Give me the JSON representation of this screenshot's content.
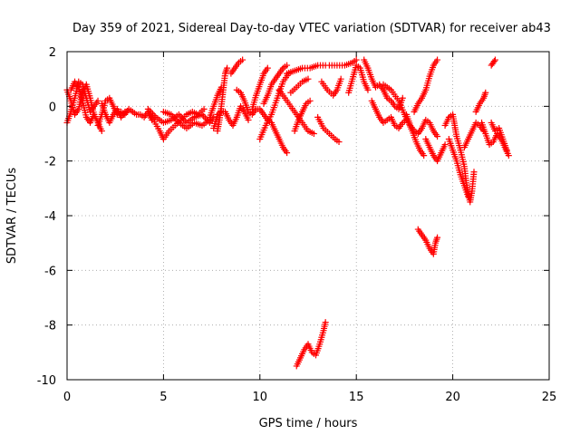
{
  "chart_data": {
    "type": "scatter",
    "title": "Day 359 of 2021, Sidereal Day-to-day VTEC variation (SDTVAR) for receiver ab43",
    "xlabel": "GPS time / hours",
    "ylabel": "SDTVAR / TECUs",
    "xlim": [
      0,
      25
    ],
    "ylim": [
      -10,
      2
    ],
    "xticks": [
      0,
      5,
      10,
      15,
      20,
      25
    ],
    "yticks": [
      -10,
      -8,
      -6,
      -4,
      -2,
      0,
      2
    ],
    "xtick_labels": [
      "0",
      "5",
      "10",
      "15",
      "20",
      "25"
    ],
    "ytick_labels": [
      "-10",
      "-8",
      "-6",
      "-4",
      "-2",
      "0",
      "2"
    ],
    "grid": true,
    "marker": "+",
    "series_color": "#ff0000",
    "tracks": [
      [
        [
          0.0,
          0.6
        ],
        [
          0.2,
          0.2
        ],
        [
          0.4,
          -0.3
        ],
        [
          0.6,
          -0.1
        ],
        [
          0.8,
          0.5
        ],
        [
          1.0,
          0.8
        ],
        [
          1.2,
          0.3
        ],
        [
          1.4,
          -0.3
        ],
        [
          1.6,
          -0.6
        ],
        [
          1.8,
          -0.9
        ]
      ],
      [
        [
          0.0,
          -0.6
        ],
        [
          0.2,
          -0.2
        ],
        [
          0.4,
          0.3
        ],
        [
          0.6,
          0.9
        ],
        [
          0.8,
          0.8
        ],
        [
          1.0,
          0.3
        ],
        [
          1.2,
          -0.2
        ],
        [
          1.4,
          0.0
        ],
        [
          1.6,
          0.2
        ]
      ],
      [
        [
          0.2,
          0.6
        ],
        [
          0.4,
          0.9
        ],
        [
          0.6,
          0.7
        ],
        [
          0.8,
          0.2
        ],
        [
          1.0,
          -0.4
        ],
        [
          1.2,
          -0.6
        ],
        [
          1.4,
          -0.3
        ]
      ],
      [
        [
          1.6,
          -0.7
        ],
        [
          1.8,
          -0.3
        ],
        [
          2.0,
          0.2
        ],
        [
          2.2,
          0.3
        ],
        [
          2.4,
          0.0
        ],
        [
          2.6,
          -0.3
        ],
        [
          2.8,
          -0.2
        ],
        [
          3.0,
          -0.3
        ],
        [
          3.2,
          -0.1
        ],
        [
          3.4,
          -0.2
        ],
        [
          3.6,
          -0.3
        ],
        [
          3.8,
          -0.3
        ],
        [
          4.0,
          -0.4
        ],
        [
          4.2,
          -0.2
        ],
        [
          4.4,
          -0.5
        ]
      ],
      [
        [
          1.8,
          0.1
        ],
        [
          2.0,
          -0.3
        ],
        [
          2.2,
          -0.6
        ],
        [
          2.4,
          -0.3
        ],
        [
          2.6,
          -0.1
        ],
        [
          2.8,
          -0.4
        ],
        [
          3.0,
          -0.2
        ]
      ],
      [
        [
          4.2,
          -0.1
        ],
        [
          4.6,
          -0.4
        ],
        [
          5.0,
          -0.6
        ],
        [
          5.4,
          -0.5
        ],
        [
          5.8,
          -0.3
        ],
        [
          6.2,
          -0.6
        ],
        [
          6.6,
          -0.4
        ],
        [
          7.0,
          -0.3
        ],
        [
          7.4,
          -0.6
        ],
        [
          7.6,
          -0.4
        ]
      ],
      [
        [
          4.4,
          -0.4
        ],
        [
          4.8,
          -0.9
        ],
        [
          5.0,
          -1.2
        ],
        [
          5.3,
          -0.9
        ],
        [
          5.6,
          -0.7
        ],
        [
          5.9,
          -0.5
        ],
        [
          6.2,
          -0.3
        ],
        [
          6.5,
          -0.2
        ],
        [
          6.8,
          -0.3
        ],
        [
          7.1,
          -0.1
        ]
      ],
      [
        [
          5.0,
          -0.2
        ],
        [
          5.4,
          -0.3
        ],
        [
          5.8,
          -0.6
        ],
        [
          6.2,
          -0.8
        ],
        [
          6.6,
          -0.6
        ],
        [
          7.0,
          -0.7
        ],
        [
          7.4,
          -0.5
        ]
      ],
      [
        [
          7.4,
          -0.4
        ],
        [
          7.6,
          0.0
        ],
        [
          7.8,
          0.4
        ],
        [
          8.0,
          0.7
        ]
      ],
      [
        [
          7.6,
          -0.8
        ],
        [
          7.8,
          -0.3
        ],
        [
          8.0,
          -0.2
        ],
        [
          8.2,
          -0.2
        ],
        [
          8.4,
          -0.5
        ],
        [
          8.6,
          -0.7
        ],
        [
          8.8,
          -0.4
        ],
        [
          9.0,
          0.0
        ],
        [
          9.2,
          -0.2
        ],
        [
          9.4,
          -0.5
        ]
      ],
      [
        [
          7.8,
          -0.9
        ],
        [
          7.9,
          -0.5
        ],
        [
          8.0,
          0.0
        ],
        [
          8.1,
          0.6
        ],
        [
          8.2,
          1.2
        ],
        [
          8.3,
          1.4
        ]
      ],
      [
        [
          8.5,
          1.2
        ],
        [
          8.7,
          1.4
        ],
        [
          8.9,
          1.6
        ],
        [
          9.1,
          1.7
        ]
      ],
      [
        [
          8.8,
          0.6
        ],
        [
          9.0,
          0.5
        ],
        [
          9.2,
          0.2
        ],
        [
          9.4,
          -0.2
        ],
        [
          9.6,
          -0.3
        ],
        [
          9.8,
          -0.1
        ],
        [
          10.0,
          -0.1
        ],
        [
          10.2,
          -0.3
        ],
        [
          10.4,
          -0.5
        ],
        [
          10.6,
          -0.6
        ]
      ],
      [
        [
          9.6,
          -0.1
        ],
        [
          9.8,
          0.4
        ],
        [
          10.0,
          0.8
        ],
        [
          10.2,
          1.2
        ],
        [
          10.4,
          1.4
        ]
      ],
      [
        [
          10.2,
          0.1
        ],
        [
          10.4,
          0.4
        ],
        [
          10.6,
          0.8
        ],
        [
          10.8,
          1.0
        ],
        [
          11.0,
          1.2
        ],
        [
          11.2,
          1.4
        ],
        [
          11.4,
          1.5
        ]
      ],
      [
        [
          10.0,
          -1.2
        ],
        [
          10.3,
          -0.7
        ],
        [
          10.6,
          -0.3
        ],
        [
          10.9,
          0.3
        ],
        [
          11.2,
          0.9
        ],
        [
          11.5,
          1.2
        ]
      ],
      [
        [
          10.6,
          -0.6
        ],
        [
          10.8,
          -0.9
        ],
        [
          11.0,
          -1.2
        ],
        [
          11.2,
          -1.5
        ],
        [
          11.4,
          -1.7
        ]
      ],
      [
        [
          11.4,
          1.2
        ],
        [
          11.8,
          1.3
        ],
        [
          12.2,
          1.4
        ],
        [
          12.6,
          1.4
        ],
        [
          13.0,
          1.5
        ],
        [
          13.4,
          1.5
        ]
      ],
      [
        [
          11.6,
          0.5
        ],
        [
          11.9,
          0.7
        ],
        [
          12.2,
          0.9
        ],
        [
          12.5,
          1.0
        ]
      ],
      [
        [
          11.0,
          0.6
        ],
        [
          11.3,
          0.3
        ],
        [
          11.6,
          0.0
        ],
        [
          11.9,
          -0.3
        ],
        [
          12.2,
          -0.6
        ],
        [
          12.5,
          -0.9
        ],
        [
          12.8,
          -1.0
        ]
      ],
      [
        [
          11.8,
          -0.9
        ],
        [
          12.0,
          -0.5
        ],
        [
          12.2,
          -0.2
        ],
        [
          12.4,
          0.1
        ],
        [
          12.6,
          0.2
        ]
      ],
      [
        [
          11.9,
          -9.5
        ],
        [
          12.1,
          -9.2
        ],
        [
          12.3,
          -8.9
        ],
        [
          12.5,
          -8.7
        ],
        [
          12.7,
          -9.0
        ],
        [
          12.9,
          -9.1
        ],
        [
          13.1,
          -8.7
        ],
        [
          13.3,
          -8.2
        ],
        [
          13.4,
          -7.9
        ]
      ],
      [
        [
          13.0,
          -0.4
        ],
        [
          13.3,
          -0.8
        ],
        [
          13.6,
          -1.0
        ],
        [
          13.9,
          -1.2
        ],
        [
          14.1,
          -1.3
        ]
      ],
      [
        [
          13.2,
          0.9
        ],
        [
          13.5,
          0.6
        ],
        [
          13.8,
          0.4
        ],
        [
          14.0,
          0.6
        ],
        [
          14.2,
          1.0
        ]
      ],
      [
        [
          13.6,
          1.5
        ],
        [
          14.0,
          1.5
        ],
        [
          14.4,
          1.5
        ],
        [
          14.8,
          1.6
        ],
        [
          15.0,
          1.7
        ]
      ],
      [
        [
          14.6,
          0.5
        ],
        [
          14.8,
          1.0
        ],
        [
          15.0,
          1.5
        ],
        [
          15.2,
          1.4
        ],
        [
          15.4,
          0.9
        ],
        [
          15.6,
          0.6
        ]
      ],
      [
        [
          15.4,
          1.7
        ],
        [
          15.6,
          1.4
        ],
        [
          15.8,
          1.0
        ],
        [
          16.0,
          0.7
        ],
        [
          16.2,
          0.8
        ],
        [
          16.4,
          0.6
        ],
        [
          16.6,
          0.3
        ],
        [
          16.8,
          0.2
        ],
        [
          17.0,
          0.0
        ],
        [
          17.2,
          -0.1
        ],
        [
          17.4,
          0.3
        ]
      ],
      [
        [
          15.8,
          0.2
        ],
        [
          16.0,
          -0.1
        ],
        [
          16.2,
          -0.4
        ],
        [
          16.4,
          -0.6
        ],
        [
          16.6,
          -0.5
        ],
        [
          16.8,
          -0.4
        ],
        [
          17.0,
          -0.7
        ],
        [
          17.2,
          -0.8
        ],
        [
          17.4,
          -0.6
        ],
        [
          17.6,
          -0.5
        ]
      ],
      [
        [
          16.4,
          0.8
        ],
        [
          16.8,
          0.6
        ],
        [
          17.2,
          0.2
        ],
        [
          17.5,
          -0.3
        ],
        [
          17.7,
          -0.6
        ],
        [
          17.9,
          -0.9
        ],
        [
          18.1,
          -1.3
        ],
        [
          18.3,
          -1.6
        ],
        [
          18.5,
          -1.8
        ]
      ],
      [
        [
          17.6,
          -0.3
        ],
        [
          17.8,
          -0.7
        ],
        [
          18.0,
          -0.9
        ],
        [
          18.2,
          -1.0
        ],
        [
          18.4,
          -0.8
        ],
        [
          18.6,
          -0.5
        ],
        [
          18.8,
          -0.6
        ],
        [
          19.0,
          -0.9
        ],
        [
          19.2,
          -1.1
        ]
      ],
      [
        [
          18.0,
          -0.2
        ],
        [
          18.2,
          0.1
        ],
        [
          18.4,
          0.3
        ],
        [
          18.6,
          0.6
        ],
        [
          18.8,
          1.1
        ],
        [
          19.0,
          1.5
        ],
        [
          19.2,
          1.7
        ]
      ],
      [
        [
          18.6,
          -1.2
        ],
        [
          18.8,
          -1.5
        ],
        [
          19.0,
          -1.8
        ],
        [
          19.2,
          -2.0
        ],
        [
          19.4,
          -1.7
        ],
        [
          19.6,
          -1.4
        ]
      ],
      [
        [
          18.2,
          -4.5
        ],
        [
          18.4,
          -4.7
        ],
        [
          18.6,
          -4.9
        ],
        [
          18.8,
          -5.2
        ],
        [
          19.0,
          -5.4
        ],
        [
          19.1,
          -5.0
        ],
        [
          19.2,
          -4.8
        ]
      ],
      [
        [
          19.6,
          -0.7
        ],
        [
          19.8,
          -0.4
        ],
        [
          20.0,
          -0.3
        ],
        [
          20.1,
          -0.7
        ],
        [
          20.2,
          -1.1
        ],
        [
          20.4,
          -1.6
        ],
        [
          20.6,
          -2.2
        ],
        [
          20.7,
          -2.8
        ],
        [
          20.8,
          -3.2
        ],
        [
          20.9,
          -3.5
        ],
        [
          21.0,
          -3.1
        ],
        [
          21.1,
          -2.4
        ]
      ],
      [
        [
          19.8,
          -1.2
        ],
        [
          20.0,
          -1.6
        ],
        [
          20.2,
          -2.0
        ],
        [
          20.4,
          -2.5
        ],
        [
          20.6,
          -2.9
        ],
        [
          20.8,
          -3.3
        ]
      ],
      [
        [
          20.6,
          -1.5
        ],
        [
          20.8,
          -1.2
        ],
        [
          21.0,
          -0.9
        ],
        [
          21.2,
          -0.6
        ],
        [
          21.4,
          -0.7
        ],
        [
          21.6,
          -0.9
        ]
      ],
      [
        [
          21.2,
          -0.2
        ],
        [
          21.4,
          0.1
        ],
        [
          21.6,
          0.3
        ],
        [
          21.7,
          0.5
        ]
      ],
      [
        [
          21.5,
          -0.6
        ],
        [
          21.7,
          -1.0
        ],
        [
          21.9,
          -1.4
        ],
        [
          22.1,
          -1.3
        ],
        [
          22.3,
          -1.0
        ],
        [
          22.5,
          -1.2
        ],
        [
          22.7,
          -1.5
        ],
        [
          22.9,
          -1.8
        ]
      ],
      [
        [
          22.0,
          -0.6
        ],
        [
          22.2,
          -0.9
        ],
        [
          22.4,
          -0.8
        ],
        [
          22.6,
          -1.2
        ],
        [
          22.8,
          -1.6
        ]
      ],
      [
        [
          22.0,
          1.5
        ],
        [
          22.1,
          1.6
        ],
        [
          22.2,
          1.7
        ]
      ]
    ]
  }
}
